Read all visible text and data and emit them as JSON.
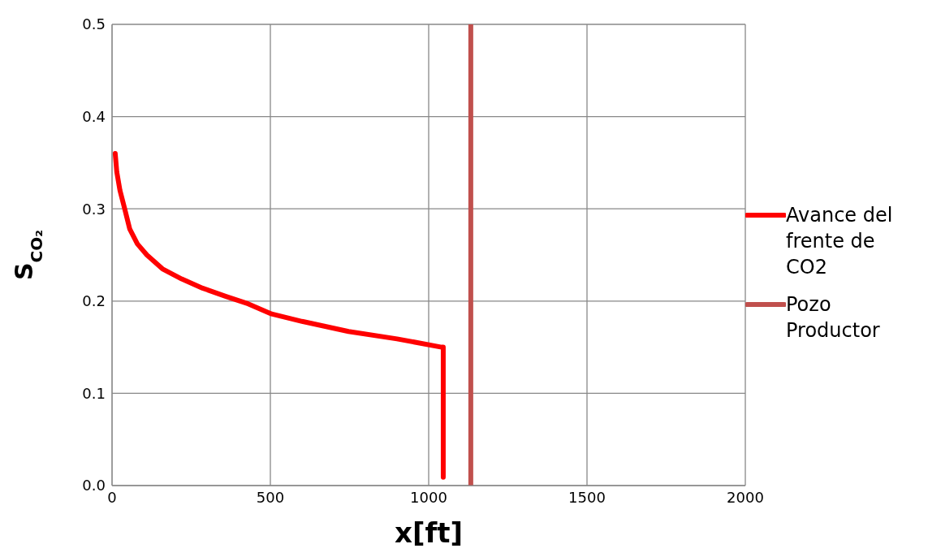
{
  "chart_data": {
    "type": "line",
    "xlabel": "x[ft]",
    "ylabel": "S$_{CO₂}$",
    "xlim": [
      0,
      2000
    ],
    "xticks": [
      0,
      500,
      1000,
      1500,
      2000
    ],
    "ylim": [
      0,
      0.5
    ],
    "yticks": [
      {
        "value": 0,
        "label": "0.0"
      },
      0.1,
      0.2,
      0.3,
      0.4,
      0.5
    ],
    "grid": true,
    "legend": "right",
    "marker": "none",
    "line_style": "solid",
    "series": [
      {
        "name": "Avance del frente de CO2",
        "color": "#ff0000",
        "x": [
          10,
          15,
          25,
          40,
          56,
          80,
          110,
          159,
          220,
          286,
          360,
          430,
          504,
          600,
          747,
          900,
          1041,
          1046,
          1046
        ],
        "values": [
          0.36,
          0.34,
          0.32,
          0.3,
          0.278,
          0.262,
          0.25,
          0.235,
          0.224,
          0.214,
          0.205,
          0.197,
          0.186,
          0.178,
          0.167,
          0.159,
          0.15,
          0.15,
          0.009
        ]
      },
      {
        "name": "Pozo Productor",
        "color": "#c0504d",
        "x": [
          1133,
          1133
        ],
        "values": [
          0,
          0.5
        ]
      }
    ]
  }
}
